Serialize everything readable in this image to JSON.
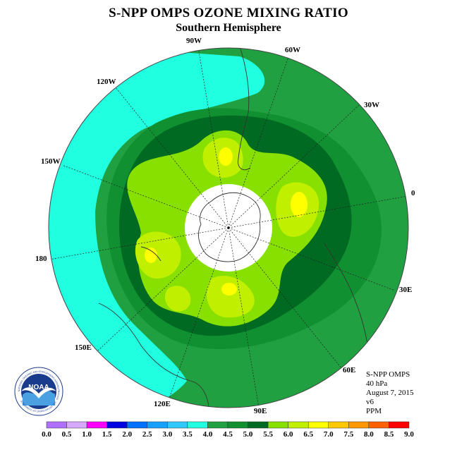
{
  "title": "S-NPP OMPS OZONE MIXING RATIO",
  "subtitle": "Southern Hemisphere",
  "longitude_labels": [
    "90W",
    "60W",
    "30W",
    "0",
    "30E",
    "60E",
    "90E",
    "120E",
    "150E",
    "180",
    "150W",
    "120W"
  ],
  "info": {
    "instrument": "S-NPP OMPS",
    "pressure": "40 hPa",
    "date": "August 7, 2015",
    "version": "v6",
    "units": "PPM"
  },
  "logo": {
    "text": "NOAA",
    "ring_text": "NATIONAL OCEANIC AND ATMOSPHERIC ADMINISTRATION · U.S. DEPARTMENT OF COMMERCE"
  },
  "colorbar": {
    "ticks": [
      "0.0",
      "0.5",
      "1.0",
      "1.5",
      "2.0",
      "2.5",
      "3.0",
      "3.5",
      "4.0",
      "4.5",
      "5.0",
      "5.5",
      "6.0",
      "6.5",
      "7.0",
      "7.5",
      "8.0",
      "8.5",
      "9.0"
    ],
    "colors": [
      "#b070ff",
      "#d8a8ff",
      "#ff00ff",
      "#0000e0",
      "#0070ff",
      "#18a0ff",
      "#30c8ff",
      "#20ffe0",
      "#20a040",
      "#109030",
      "#006a22",
      "#88e000",
      "#c0f000",
      "#ffff00",
      "#ffc800",
      "#ff9800",
      "#ff6000",
      "#ff0000",
      "#a05030"
    ]
  },
  "colors": {
    "band_3_5_to_4_0": "#20ffe0",
    "band_4_0_to_4_5": "#20a040",
    "band_4_5_to_5_0": "#109030",
    "band_5_0_to_5_5": "#006a22",
    "band_5_5_to_6_0": "#88e000",
    "band_6_0_to_6_5": "#c0f000",
    "band_6_5_to_7_0": "#ffff00",
    "no_data": "#ffffff"
  }
}
